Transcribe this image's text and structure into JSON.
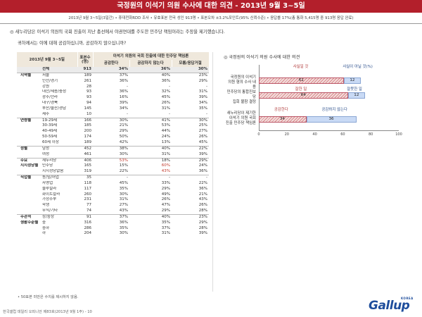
{
  "header": {
    "title": "국정원의 이석기 의원 수사에 대한 의견 - 2013년 9월 3~5일",
    "subtitle": "2013년 9월 3~5일(3일간) • 휴대전화RDD 조사 • 유효표본 전국 성인 913명 • 표본오차 ±3.2%포인트(95% 신뢰수준) • 응답률 17%(총 통화 5,415명 중 913명 응답 완료)"
  },
  "question": {
    "line1": "◎ 새누리당은 이석기 의원의 국회 진출이 지난 총선에서 야권연대를 주도한 민주당 책임이라는 주장을 제기했습니다.",
    "line2": "귀하께서는 이에 대해 공감하십니까, 공감하지 않으십니까?"
  },
  "table": {
    "period": "2013년 9월 3~5일",
    "n_header": "표본수 (명)",
    "group_header": "이석기 의원의 국회 진출에 대한 민주당 책임론",
    "col1": "공감한다",
    "col2": "공감하지 않는다",
    "col3": "모름/응답거절",
    "rows": [
      {
        "group": "",
        "label": "전체",
        "n": "913",
        "a": "34%",
        "b": "36%",
        "c": "30%",
        "total": true
      },
      {
        "group": "지역별",
        "label": "서울",
        "n": "189",
        "a": "37%",
        "b": "40%",
        "c": "23%",
        "sep": true
      },
      {
        "group": "",
        "label": "인천/경기",
        "n": "261",
        "a": "36%",
        "b": "36%",
        "c": "29%"
      },
      {
        "group": "",
        "label": "강원",
        "n": "28",
        "a": "-",
        "b": "-",
        "c": "-"
      },
      {
        "group": "",
        "label": "대전/세종/충청",
        "n": "93",
        "a": "36%",
        "b": "32%",
        "c": "31%"
      },
      {
        "group": "",
        "label": "광주/전라",
        "n": "93",
        "a": "16%",
        "b": "45%",
        "c": "39%"
      },
      {
        "group": "",
        "label": "대구/경북",
        "n": "94",
        "a": "39%",
        "b": "26%",
        "c": "34%"
      },
      {
        "group": "",
        "label": "부산/울산/경남",
        "n": "145",
        "a": "34%",
        "b": "31%",
        "c": "35%"
      },
      {
        "group": "",
        "label": "제주",
        "n": "10",
        "a": "-",
        "b": "-",
        "c": "-"
      },
      {
        "group": "연령별",
        "label": "19-29세",
        "n": "166",
        "a": "30%",
        "b": "41%",
        "c": "30%",
        "sep": true
      },
      {
        "group": "",
        "label": "30-39세",
        "n": "185",
        "a": "21%",
        "b": "53%",
        "c": "25%"
      },
      {
        "group": "",
        "label": "40-49세",
        "n": "200",
        "b": "44%",
        "a": "29%",
        "c": "27%"
      },
      {
        "group": "",
        "label": "50-59세",
        "n": "174",
        "a": "50%",
        "b": "24%",
        "c": "26%"
      },
      {
        "group": "",
        "label": "60세 이상",
        "n": "189",
        "a": "42%",
        "b": "13%",
        "c": "45%"
      },
      {
        "group": "성별",
        "label": "남성",
        "n": "452",
        "a": "38%",
        "b": "40%",
        "c": "22%",
        "sep": true
      },
      {
        "group": "",
        "label": "여성",
        "n": "461",
        "a": "30%",
        "b": "31%",
        "c": "39%"
      },
      {
        "group": "주요",
        "label": "새누리당",
        "n": "406",
        "a": "53%",
        "b": "18%",
        "c": "29%",
        "sep": true,
        "ha": true
      },
      {
        "group": "지지정당별",
        "label": "민주당",
        "n": "165",
        "a": "15%",
        "b": "60%",
        "c": "24%",
        "hb": true
      },
      {
        "group": "",
        "label": "지지정당없음",
        "n": "319",
        "a": "22%",
        "b": "43%",
        "c": "36%",
        "hb": true
      },
      {
        "group": "직업별",
        "label": "농/임/어업",
        "n": "35",
        "a": "-",
        "b": "-",
        "c": "-",
        "sep": true
      },
      {
        "group": "",
        "label": "자영업",
        "n": "118",
        "a": "45%",
        "b": "33%",
        "c": "22%"
      },
      {
        "group": "",
        "label": "블루칼라",
        "n": "117",
        "a": "35%",
        "b": "29%",
        "c": "36%"
      },
      {
        "group": "",
        "label": "화이트칼라",
        "n": "260",
        "a": "30%",
        "b": "49%",
        "c": "21%"
      },
      {
        "group": "",
        "label": "가정주부",
        "n": "231",
        "a": "31%",
        "b": "26%",
        "c": "43%"
      },
      {
        "group": "",
        "label": "학생",
        "n": "77",
        "a": "27%",
        "b": "47%",
        "c": "26%"
      },
      {
        "group": "",
        "label": "무직/기타",
        "n": "74",
        "a": "43%",
        "b": "29%",
        "c": "28%"
      },
      {
        "group": "주관적",
        "label": "상/중상",
        "n": "91",
        "a": "37%",
        "b": "40%",
        "c": "23%",
        "sep": true
      },
      {
        "group": "생활수준별",
        "label": "중",
        "n": "316",
        "a": "36%",
        "b": "35%",
        "c": "29%"
      },
      {
        "group": "",
        "label": "중하",
        "n": "286",
        "a": "35%",
        "b": "37%",
        "c": "28%"
      },
      {
        "group": "",
        "label": "하",
        "n": "204",
        "a": "30%",
        "b": "31%",
        "c": "39%"
      }
    ]
  },
  "note": "• 50표본 미만은 수치를 제시하지 않음.",
  "footer": "한국갤럽 데일리 오피니언 제83호(2013년 9월 1주) - 10",
  "logo": {
    "text": "Gallup",
    "korea": "KOREA"
  },
  "chart_title": "◎ 국정원의 이석기 의원 수사에 대한 의견",
  "chart_data": {
    "type": "bar",
    "orientation": "horizontal-stacked",
    "categories": [
      {
        "label": [
          "국정원의 이석기",
          "의원 혐의 수사 내용"
        ],
        "legend": [
          "사실일 것",
          "사실이 아닐 것(%)"
        ],
        "values": [
          61,
          12
        ]
      },
      {
        "label": [
          "민주당의 통합진보당",
          "집회 불참 결정"
        ],
        "legend": [
          "잘한 일",
          "잘못한 일"
        ],
        "values": [
          64,
          12
        ]
      },
      {
        "label": [
          "새누리당이 제기한",
          "이석기 의원 국회",
          "진출 민주당 책임론"
        ],
        "legend": [
          "공감한다",
          "공감하지 않는다"
        ],
        "values": [
          34,
          36
        ]
      }
    ],
    "colors": {
      "first": "#d98b8b",
      "second": "#c9daf5"
    },
    "xlim": [
      0,
      100
    ],
    "ticks": [
      "0",
      "20",
      "40",
      "60",
      "80",
      "100"
    ]
  }
}
